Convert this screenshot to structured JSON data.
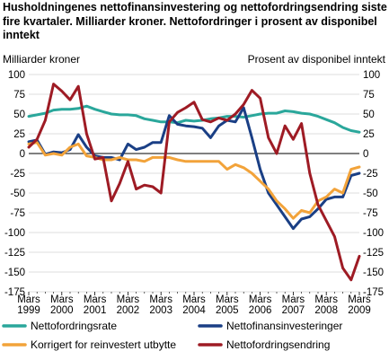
{
  "title": "Husholdningenes nettofinansinvestering og nettofordringsendring siste fire kvartaler. Milliarder kroner. Nettofordringer i prosent av disponibel inntekt",
  "ylabel_left": "Milliarder kroner",
  "ylabel_right": "Prosent av disponibel inntekt",
  "colors": {
    "grid": "#d0d0d0",
    "zero": "#000000",
    "nettofordringsrate": "#2aa79b",
    "nettofinansinvesteringer": "#1a3f85",
    "korrigert": "#f2a33a",
    "nettofordringsendring": "#9e1b24"
  },
  "chart_data": {
    "type": "line",
    "title": "Husholdningenes nettofinansinvestering og nettofordringsendring siste fire kvartaler. Milliarder kroner. Nettofordringer i prosent av disponibel inntekt",
    "ylabel_left": "Milliarder kroner",
    "ylabel_right": "Prosent av disponibel inntekt",
    "ylim": [
      -175,
      100
    ],
    "y_ticks": [
      100,
      75,
      50,
      25,
      0,
      -25,
      -50,
      -75,
      -100,
      -125,
      -150,
      -175
    ],
    "x_ticks": [
      {
        "line1": "Mars",
        "line2": "1999",
        "q": 0
      },
      {
        "line1": "Mars",
        "line2": "2000",
        "q": 4
      },
      {
        "line1": "Mars",
        "line2": "2001",
        "q": 8
      },
      {
        "line1": "Mars",
        "line2": "2002",
        "q": 12
      },
      {
        "line1": "Mars",
        "line2": "2003",
        "q": 16
      },
      {
        "line1": "Mars",
        "line2": "2004",
        "q": 20
      },
      {
        "line1": "Mars",
        "line2": "2005",
        "q": 24
      },
      {
        "line1": "Mars",
        "line2": "2006",
        "q": 28
      },
      {
        "line1": "Mars",
        "line2": "2007",
        "q": 32
      },
      {
        "line1": "Mars",
        "line2": "2008",
        "q": 36
      },
      {
        "line1": "Mars",
        "line2": "2009",
        "q": 40
      }
    ],
    "grid": true,
    "legend_position": "bottom",
    "series": [
      {
        "name": "Nettofordringsrate",
        "key": "nettofordringsrate",
        "values": [
          47,
          49,
          51,
          55,
          56,
          56,
          57,
          60,
          56,
          53,
          50,
          49,
          49,
          48,
          44,
          42,
          40,
          40,
          39,
          42,
          41,
          42,
          44,
          45,
          47,
          47,
          46,
          48,
          50,
          51,
          51,
          54,
          53,
          51,
          50,
          47,
          43,
          39,
          33,
          29,
          27
        ]
      },
      {
        "name": "Nettofinansinvesteringer",
        "key": "nettofinansinvesteringer",
        "values": [
          15,
          17,
          -1,
          2,
          1,
          5,
          24,
          8,
          -3,
          -5,
          -5,
          -8,
          12,
          5,
          8,
          14,
          14,
          48,
          37,
          35,
          34,
          32,
          20,
          35,
          42,
          40,
          58,
          20,
          -20,
          -50,
          -65,
          -80,
          -95,
          -83,
          -80,
          -70,
          -58,
          -55,
          -55,
          -28,
          -25
        ]
      },
      {
        "name": "Korrigert for reinvestert utbytte",
        "key": "korrigert",
        "values": [
          12,
          14,
          -2,
          0,
          -2,
          8,
          12,
          -3,
          -5,
          -8,
          -8,
          -5,
          -8,
          -8,
          -10,
          -5,
          -5,
          -5,
          -8,
          -10,
          -10,
          -10,
          -10,
          -10,
          -20,
          -14,
          -18,
          -25,
          -35,
          -45,
          -60,
          -70,
          -82,
          -72,
          -75,
          -60,
          -55,
          -45,
          -50,
          -20,
          -17
        ]
      },
      {
        "name": "Nettofordringsendring",
        "key": "nettofordringsendring",
        "values": [
          8,
          18,
          42,
          88,
          79,
          68,
          85,
          25,
          -7,
          -5,
          -60,
          -38,
          -10,
          -45,
          -40,
          -42,
          -50,
          40,
          52,
          58,
          65,
          43,
          40,
          45,
          42,
          50,
          62,
          80,
          70,
          20,
          0,
          35,
          18,
          38,
          -25,
          -65,
          -85,
          -105,
          -145,
          -160,
          -130
        ]
      }
    ]
  },
  "legend": [
    {
      "key": "nettofordringsrate",
      "label": "Nettofordringsrate"
    },
    {
      "key": "nettofinansinvesteringer",
      "label": "Nettofinansinvesteringer"
    },
    {
      "key": "korrigert",
      "label": "Korrigert for reinvestert utbytte"
    },
    {
      "key": "nettofordringsendring",
      "label": "Nettofordringsendring"
    }
  ]
}
